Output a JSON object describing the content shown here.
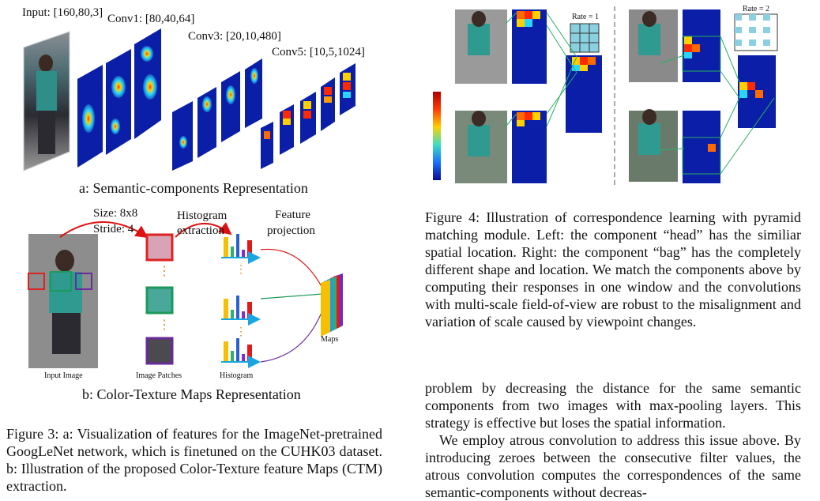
{
  "fig3a": {
    "input_label": "Input: [160,80,3]",
    "conv1_label": "Conv1: [80,40,64]",
    "conv3_label": "Conv3: [20,10,480]",
    "conv5_label": "Conv5: [10,5,1024]",
    "subcaption": "a: Semantic-components Representation"
  },
  "fig3b": {
    "size_label": "Size: 8x8",
    "stride_label": "Stride: 4",
    "histogram_extraction_line1": "Histogram",
    "histogram_extraction_line2": "extraction",
    "feature_projection_line1": "Feature",
    "feature_projection_line2": "projection",
    "maps_label": "Maps",
    "input_image_label": "Input Image",
    "image_patches_label": "Image Patches",
    "histogram_label": "Histogram",
    "subcaption": "b: Color-Texture Maps Representation"
  },
  "fig3_caption": "Figure 3: a: Visualization of features for the ImageNet-pretrained GoogLeNet network, which is finetuned on the CUHK03 dataset. b: Illustration of the proposed Color-Texture feature Maps (CTM) extraction.",
  "fig4": {
    "rate1_label": "Rate = 1",
    "rate2_label": "Rate = 2"
  },
  "fig4_caption": "Figure 4: Illustration of correspondence learning with pyramid matching module. Left: the component “head” has the similiar spatial location. Right: the component “bag” has the completely different shape and location. We match the components above by computing their responses in one window and the convolutions with multi-scale field-of-view are robust to the misalignment and variation of scale caused by viewpoint changes.",
  "body_paragraph1": "problem by decreasing the distance for the same semantic components from two images with max-pooling layers. This strategy is effective but loses the spatial information.",
  "body_paragraph2": "We employ atrous convolution to address this issue above. By introducing zeroes between the consecutive filter values, the atrous convolution computes the correspondences of the same semantic-components without decreas-"
}
